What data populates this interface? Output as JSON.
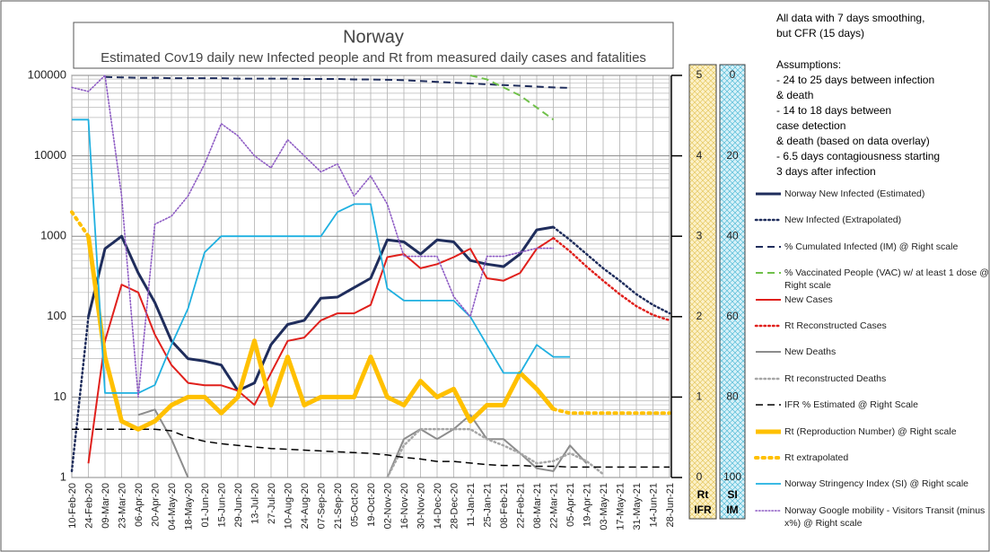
{
  "chart_data": {
    "type": "line",
    "title": "Norway",
    "subtitle": "Estimated Cov19 daily new Infected people and Rt from measured daily cases and fatalities",
    "notes": [
      [
        "All data with 7 days smoothing,",
        "but CFR (15 days)"
      ],
      [
        "Assumptions:",
        "- 24 to 25 days between infection",
        "& death",
        "- 14 to 18 days between",
        "case detection",
        "& death (based on data overlay)",
        "- 6.5 days contagiousness starting",
        "3 days after infection"
      ]
    ],
    "categories": [
      "10-Feb-20",
      "24-Feb-20",
      "09-Mar-20",
      "23-Mar-20",
      "06-Apr-20",
      "20-Apr-20",
      "04-May-20",
      "18-May-20",
      "01-Jun-20",
      "15-Jun-20",
      "29-Jun-20",
      "13-Jul-20",
      "27-Jul-20",
      "10-Aug-20",
      "24-Aug-20",
      "07-Sep-20",
      "21-Sep-20",
      "05-Oct-20",
      "19-Oct-20",
      "02-Nov-20",
      "16-Nov-20",
      "30-Nov-20",
      "14-Dec-20",
      "28-Dec-20",
      "11-Jan-21",
      "25-Jan-21",
      "08-Feb-21",
      "22-Feb-21",
      "08-Mar-21",
      "22-Mar-21",
      "05-Apr-21",
      "19-Apr-21",
      "03-May-21",
      "17-May-21",
      "31-May-21",
      "14-Jun-21",
      "28-Jun-21"
    ],
    "log_scale": true,
    "grid": true,
    "ylim": [
      1,
      100000
    ],
    "yticks": [
      1,
      10,
      100,
      1000,
      10000,
      100000
    ],
    "y2lim": [
      0,
      5
    ],
    "y2ticks": [
      0,
      1,
      2,
      3,
      4,
      5
    ],
    "y2_label": [
      "Rt",
      "IFR"
    ],
    "y3lim": [
      100,
      0
    ],
    "y3ticks": [
      0,
      20,
      40,
      60,
      80,
      100
    ],
    "y3_label": [
      "SI",
      "IM"
    ],
    "series": [
      {
        "name": "Norway New Infected (Estimated)",
        "color": "#1f2d5c",
        "dash": "solid",
        "width": 3,
        "values": [
          null,
          100,
          700,
          1000,
          350,
          150,
          50,
          30,
          28,
          25,
          12,
          15,
          45,
          80,
          90,
          170,
          175,
          230,
          300,
          900,
          850,
          600,
          900,
          850,
          500,
          450,
          420,
          600,
          1200,
          1300,
          null,
          null,
          null,
          null,
          null,
          null,
          null
        ]
      },
      {
        "name": "New Infected (Extrapolated)",
        "color": "#1f2d5c",
        "dash": "dotted",
        "width": 2.5,
        "values": [
          1.2,
          100,
          null,
          null,
          null,
          null,
          null,
          null,
          null,
          null,
          null,
          null,
          null,
          null,
          null,
          null,
          null,
          null,
          null,
          null,
          null,
          null,
          null,
          null,
          null,
          null,
          null,
          null,
          null,
          1300,
          900,
          600,
          400,
          280,
          190,
          140,
          110
        ]
      },
      {
        "name": "% Cumulated Infected (IM) @ Right scale",
        "color": "#1f2d5c",
        "dash": "dashed",
        "width": 2,
        "axis": "y3",
        "values": [
          null,
          null,
          0.4,
          0.5,
          0.6,
          0.6,
          0.7,
          0.7,
          0.7,
          0.7,
          0.8,
          0.8,
          0.8,
          0.8,
          0.9,
          0.9,
          0.9,
          1,
          1,
          1.1,
          1.2,
          1.4,
          1.6,
          1.8,
          2,
          2.2,
          2.4,
          2.6,
          2.8,
          3,
          3.1,
          null,
          null,
          null,
          null,
          null,
          null
        ]
      },
      {
        "name": "% Vaccinated People (VAC) w/ at least 1 dose @ Right scale",
        "color": "#70c04a",
        "dash": "dashed",
        "width": 2,
        "axis": "y3",
        "values": [
          null,
          null,
          null,
          null,
          null,
          null,
          null,
          null,
          null,
          null,
          null,
          null,
          null,
          null,
          null,
          null,
          null,
          null,
          null,
          null,
          null,
          null,
          null,
          null,
          0,
          1,
          3,
          5,
          8,
          11,
          null,
          null,
          null,
          null,
          null,
          null,
          null
        ]
      },
      {
        "name": "New Cases",
        "color": "#e0201c",
        "dash": "solid",
        "width": 2,
        "values": [
          null,
          1.5,
          50,
          250,
          200,
          60,
          25,
          15,
          14,
          14,
          12,
          8,
          20,
          50,
          55,
          90,
          110,
          110,
          140,
          550,
          600,
          400,
          450,
          550,
          700,
          300,
          280,
          350,
          700,
          950,
          null,
          null,
          null,
          null,
          null,
          null,
          null
        ]
      },
      {
        "name": "Rt Reconstructed Cases",
        "color": "#e0201c",
        "dash": "dotted",
        "width": 2.5,
        "values": [
          null,
          null,
          null,
          null,
          null,
          null,
          null,
          null,
          null,
          null,
          null,
          null,
          null,
          null,
          null,
          null,
          null,
          null,
          null,
          null,
          null,
          null,
          null,
          null,
          null,
          null,
          null,
          null,
          null,
          950,
          650,
          420,
          280,
          190,
          135,
          105,
          90
        ]
      },
      {
        "name": "New Deaths",
        "color": "#8c8c8c",
        "dash": "solid",
        "width": 2,
        "values": [
          null,
          null,
          null,
          null,
          6,
          7,
          3,
          1,
          null,
          null,
          null,
          null,
          null,
          null,
          null,
          null,
          null,
          null,
          null,
          1,
          3,
          4,
          3,
          4,
          6,
          3,
          3,
          2,
          1.3,
          1.2,
          2.5,
          1.5,
          null,
          null,
          null,
          null,
          null
        ]
      },
      {
        "name": "Rt reconstructed Deaths",
        "color": "#a6a6a6",
        "dash": "dotted",
        "width": 2.5,
        "values": [
          null,
          null,
          null,
          null,
          null,
          null,
          null,
          null,
          null,
          null,
          null,
          null,
          null,
          null,
          null,
          null,
          null,
          null,
          null,
          1,
          2.5,
          4,
          4,
          4,
          4,
          3,
          2.5,
          2,
          1.5,
          1.6,
          2,
          1.6,
          1.1,
          null,
          null,
          null,
          null
        ]
      },
      {
        "name": "IFR % Estimated  @ Right Scale",
        "color": "#000000",
        "dash": "dashed",
        "width": 1.5,
        "axis": "y2",
        "values": [
          0.6,
          0.6,
          0.6,
          0.6,
          0.6,
          0.6,
          0.58,
          0.5,
          0.45,
          0.42,
          0.4,
          0.38,
          0.36,
          0.35,
          0.34,
          0.33,
          0.32,
          0.31,
          0.3,
          0.28,
          0.25,
          0.23,
          0.2,
          0.2,
          0.18,
          0.16,
          0.15,
          0.15,
          0.14,
          0.14,
          0.13,
          0.13,
          0.13,
          0.13,
          0.13,
          0.13,
          0.13
        ]
      },
      {
        "name": "Rt (Reproduction Number) @ Right scale",
        "color": "#ffc000",
        "dash": "solid",
        "width": 5,
        "axis": "y2",
        "values": [
          null,
          3,
          1.5,
          0.7,
          0.6,
          0.7,
          0.9,
          1,
          1,
          0.8,
          1,
          1.7,
          0.9,
          1.5,
          0.9,
          1,
          1,
          1,
          1.5,
          1,
          0.9,
          1.2,
          1,
          1.1,
          0.7,
          0.9,
          0.9,
          1.3,
          1.1,
          0.85,
          null,
          null,
          null,
          null,
          null,
          null,
          null
        ]
      },
      {
        "name": "Rt extrapolated",
        "color": "#ffc000",
        "dash": "dotted",
        "width": 4,
        "axis": "y2",
        "values": [
          3.3,
          3,
          null,
          null,
          null,
          null,
          null,
          null,
          null,
          null,
          null,
          null,
          null,
          null,
          null,
          null,
          null,
          null,
          null,
          null,
          null,
          null,
          null,
          null,
          null,
          null,
          null,
          null,
          null,
          0.85,
          0.8,
          0.8,
          0.8,
          0.8,
          0.8,
          0.8,
          0.8
        ]
      },
      {
        "name": "Norway Stringency  Index (SI) @ Right scale",
        "color": "#1fb0e0",
        "dash": "solid",
        "width": 1.8,
        "axis": "y3",
        "values": [
          11,
          11,
          79,
          79,
          79,
          77,
          67,
          58,
          44,
          40,
          40,
          40,
          40,
          40,
          40,
          40,
          34,
          32,
          32,
          53,
          56,
          56,
          56,
          56,
          60,
          67,
          74,
          74,
          67,
          70,
          70,
          null,
          null,
          null,
          null,
          null,
          null
        ]
      },
      {
        "name": "Norway Google mobility - Visitors Transit (minus x%) @ Right scale",
        "color": "#8e5cc4",
        "dash": "dotted",
        "width": 1.6,
        "axis": "y3",
        "values": [
          3,
          4,
          0,
          30,
          80,
          37,
          35,
          30,
          22,
          12,
          15,
          20,
          23,
          16,
          20,
          24,
          22,
          30,
          25,
          32,
          45,
          45,
          45,
          55,
          60,
          45,
          45,
          44,
          43,
          43,
          null,
          null,
          null,
          null,
          null,
          null,
          null
        ]
      }
    ]
  }
}
